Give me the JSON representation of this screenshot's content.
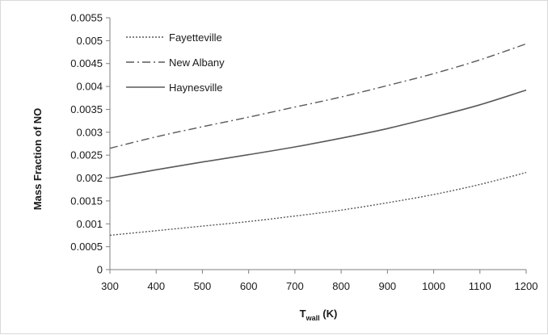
{
  "chart_data": {
    "type": "line",
    "title": "",
    "xlabel": {
      "main": "T",
      "subscript": "wall",
      "unit": " (K)"
    },
    "ylabel": "Mass  Fraction of NO",
    "xlim": [
      300,
      1200
    ],
    "ylim": [
      0,
      0.0055
    ],
    "x_ticks": [
      "300",
      "400",
      "500",
      "600",
      "700",
      "800",
      "900",
      "1000",
      "1100",
      "1200"
    ],
    "y_ticks": [
      "0",
      "0.0005",
      "0.001",
      "0.0015",
      "0.002",
      "0.0025",
      "0.003",
      "0.0035",
      "0.004",
      "0.0045",
      "0.005",
      "0.0055"
    ],
    "grid": false,
    "legend_position": "top-left",
    "x": [
      300,
      400,
      500,
      600,
      700,
      800,
      900,
      1000,
      1100,
      1200
    ],
    "series": [
      {
        "name": "Fayetteville",
        "style": "dotted",
        "values": [
          0.00075,
          0.00085,
          0.00095,
          0.00105,
          0.00117,
          0.0013,
          0.00146,
          0.00164,
          0.00186,
          0.00212
        ]
      },
      {
        "name": "New Albany",
        "style": "dash-dot",
        "values": [
          0.00265,
          0.0029,
          0.00312,
          0.00333,
          0.00355,
          0.00377,
          0.00402,
          0.00428,
          0.00458,
          0.00493
        ]
      },
      {
        "name": "Haynesville",
        "style": "solid",
        "values": [
          0.002,
          0.00218,
          0.00235,
          0.00251,
          0.00268,
          0.00287,
          0.00308,
          0.00333,
          0.0036,
          0.00392
        ]
      }
    ],
    "colors": {
      "line": "#595959",
      "axis": "#7f7f7f",
      "text": "#1a1a1a"
    }
  }
}
